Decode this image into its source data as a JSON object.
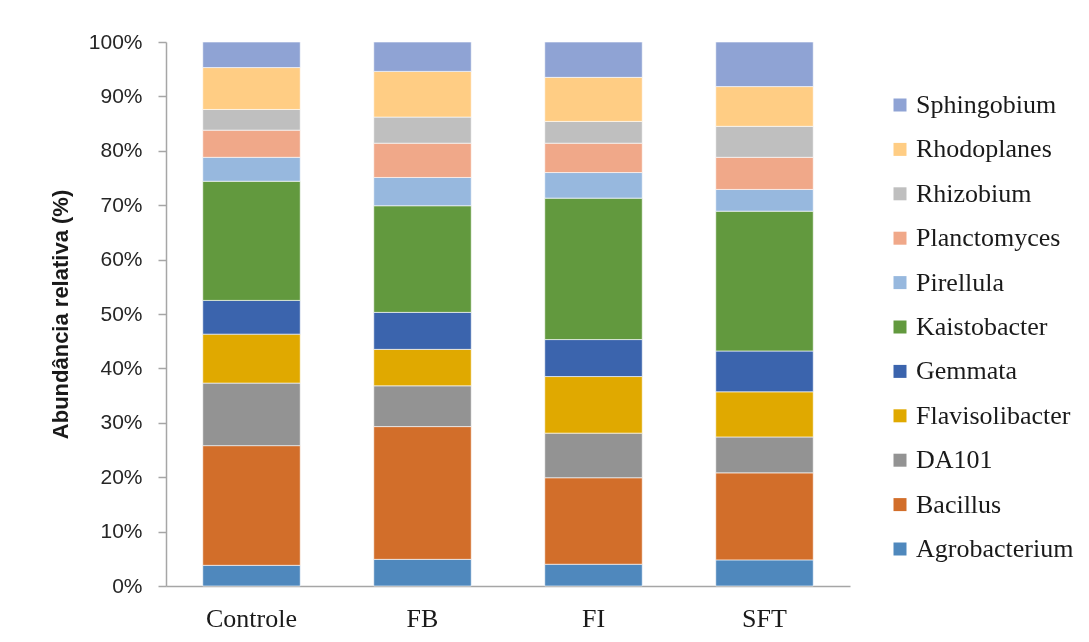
{
  "chart_data": {
    "type": "bar",
    "stacked": true,
    "ylabel": "Abundância relativa (%)",
    "categories": [
      "Controle",
      "FB",
      "FI",
      "SFT"
    ],
    "ylim": [
      0,
      100
    ],
    "yticks": [
      {
        "value": 0,
        "label": "0%"
      },
      {
        "value": 10,
        "label": "10%"
      },
      {
        "value": 20,
        "label": "20%"
      },
      {
        "value": 30,
        "label": "30%"
      },
      {
        "value": 40,
        "label": "40%"
      },
      {
        "value": 50,
        "label": "50%"
      },
      {
        "value": 60,
        "label": "60%"
      },
      {
        "value": 70,
        "label": "70%"
      },
      {
        "value": 80,
        "label": "80%"
      },
      {
        "value": 90,
        "label": "90%"
      },
      {
        "value": 100,
        "label": "100%"
      }
    ],
    "legend": "right",
    "series": [
      {
        "name": "Agrobacterium",
        "color": "#4f88bd",
        "values": [
          3.8,
          4.9,
          4.0,
          4.8
        ]
      },
      {
        "name": "Bacillus",
        "color": "#d26e2a",
        "values": [
          22.0,
          24.4,
          15.9,
          16.0
        ]
      },
      {
        "name": "DA101",
        "color": "#939393",
        "values": [
          11.5,
          7.5,
          8.2,
          6.6
        ]
      },
      {
        "name": "Flavisolibacter",
        "color": "#e0a900",
        "values": [
          9.0,
          6.7,
          10.4,
          8.3
        ]
      },
      {
        "name": "Gemmata",
        "color": "#3b64ad",
        "values": [
          6.2,
          6.8,
          6.8,
          7.5
        ]
      },
      {
        "name": "Kaistobacter",
        "color": "#62993e",
        "values": [
          21.9,
          19.6,
          26.0,
          25.7
        ]
      },
      {
        "name": "Pirellula",
        "color": "#97b8de",
        "values": [
          4.4,
          5.2,
          4.7,
          4.0
        ]
      },
      {
        "name": "Planctomyces",
        "color": "#f0a889",
        "values": [
          5.0,
          6.3,
          5.4,
          5.9
        ]
      },
      {
        "name": "Rhizobium",
        "color": "#bfbfbf",
        "values": [
          3.8,
          4.8,
          4.0,
          5.7
        ]
      },
      {
        "name": "Rhodoplanes",
        "color": "#ffcd84",
        "values": [
          7.7,
          8.4,
          8.1,
          7.3
        ]
      },
      {
        "name": "Sphingobium",
        "color": "#8fa3d4",
        "values": [
          4.7,
          5.4,
          6.5,
          8.2
        ]
      }
    ]
  }
}
